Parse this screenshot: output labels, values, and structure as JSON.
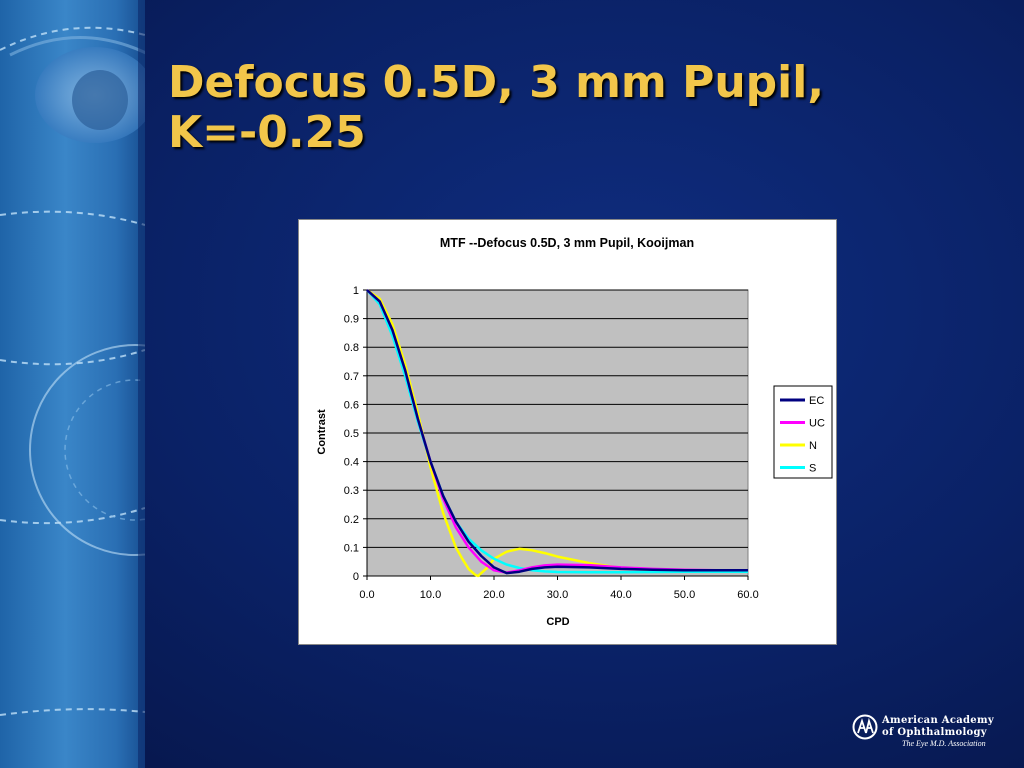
{
  "slide": {
    "title": "Defocus 0.5D, 3 mm Pupil,\nK=-0.25"
  },
  "colors": {
    "title": "#f2c64a",
    "background": "#0a2165",
    "plot_area": "#c0c0c0"
  },
  "logo": {
    "line1": "American Academy",
    "line2": "of Ophthalmology",
    "tagline": "The Eye M.D. Association",
    "icon": "aao-monogram-icon"
  },
  "chart_data": {
    "type": "line",
    "title": "MTF --Defocus 0.5D, 3 mm Pupil, Kooijman",
    "xlabel": "CPD",
    "ylabel": "Contrast",
    "xlim": [
      0,
      60
    ],
    "ylim": [
      0,
      1
    ],
    "x_ticks": [
      "0.0",
      "10.0",
      "20.0",
      "30.0",
      "40.0",
      "50.0",
      "60.0"
    ],
    "y_ticks": [
      "0",
      "0.1",
      "0.2",
      "0.3",
      "0.4",
      "0.5",
      "0.6",
      "0.7",
      "0.8",
      "0.9",
      "1"
    ],
    "grid": "horizontal",
    "legend_position": "right",
    "series": [
      {
        "name": "EC",
        "color": "#000080",
        "x": [
          0,
          2,
          4,
          6,
          8,
          10,
          12,
          14,
          16,
          18,
          20,
          22,
          24,
          26,
          28,
          30,
          35,
          40,
          45,
          50,
          55,
          60
        ],
        "y": [
          1.0,
          0.96,
          0.86,
          0.72,
          0.55,
          0.4,
          0.28,
          0.19,
          0.12,
          0.07,
          0.03,
          0.01,
          0.015,
          0.025,
          0.03,
          0.032,
          0.03,
          0.025,
          0.022,
          0.02,
          0.02,
          0.02
        ]
      },
      {
        "name": "UC",
        "color": "#ff00ff",
        "x": [
          0,
          2,
          4,
          6,
          8,
          10,
          12,
          14,
          16,
          18,
          20,
          22,
          24,
          26,
          28,
          30,
          35,
          40,
          45,
          50,
          55,
          60
        ],
        "y": [
          1.0,
          0.96,
          0.86,
          0.72,
          0.55,
          0.4,
          0.27,
          0.17,
          0.1,
          0.05,
          0.02,
          0.012,
          0.02,
          0.03,
          0.037,
          0.04,
          0.038,
          0.03,
          0.025,
          0.022,
          0.02,
          0.02
        ]
      },
      {
        "name": "N",
        "color": "#ffff00",
        "x": [
          0,
          2,
          4,
          6,
          8,
          10,
          12,
          14,
          15,
          16,
          17,
          17.5,
          18,
          19,
          20,
          22,
          24,
          26,
          28,
          30,
          35,
          40,
          45,
          50,
          55,
          60
        ],
        "y": [
          1.0,
          0.97,
          0.88,
          0.74,
          0.57,
          0.38,
          0.22,
          0.1,
          0.06,
          0.025,
          0.005,
          0.0,
          0.01,
          0.03,
          0.06,
          0.085,
          0.095,
          0.09,
          0.08,
          0.068,
          0.045,
          0.028,
          0.02,
          0.018,
          0.018,
          0.018
        ]
      },
      {
        "name": "S",
        "color": "#00ffff",
        "x": [
          0,
          2,
          4,
          6,
          8,
          10,
          12,
          14,
          16,
          18,
          20,
          22,
          24,
          26,
          28,
          30,
          35,
          40,
          45,
          50,
          55,
          60
        ],
        "y": [
          1.0,
          0.95,
          0.84,
          0.7,
          0.54,
          0.4,
          0.28,
          0.19,
          0.13,
          0.09,
          0.06,
          0.04,
          0.028,
          0.02,
          0.016,
          0.014,
          0.013,
          0.013,
          0.014,
          0.015,
          0.015,
          0.015
        ]
      }
    ]
  }
}
